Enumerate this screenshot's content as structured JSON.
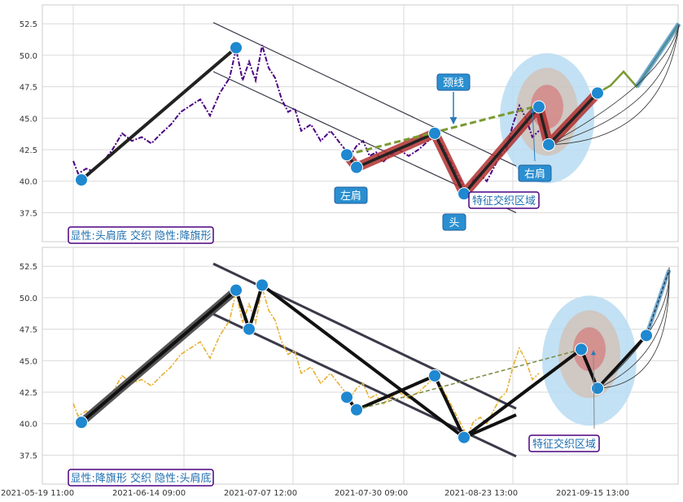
{
  "chart_data": [
    {
      "type": "line",
      "ylim": [
        35.2,
        54.0
      ],
      "yticks": [
        "37.5",
        "40.0",
        "42.5",
        "45.0",
        "47.5",
        "50.0",
        "52.5"
      ],
      "grid": true,
      "xlabels": [
        "2021-05-19 11:00",
        "2021-06-14 09:00",
        "2021-07-07 12:00",
        "2021-07-30 09:00",
        "2021-08-23 13:00",
        "2021-09-15 13:00"
      ],
      "price_color": "#4b0082",
      "price": [
        [
          0,
          41.6
        ],
        [
          3,
          40.6
        ],
        [
          8,
          41.0
        ],
        [
          12,
          40.8
        ],
        [
          18,
          41.5
        ],
        [
          24,
          42.5
        ],
        [
          30,
          43.8
        ],
        [
          36,
          43.2
        ],
        [
          42,
          43.5
        ],
        [
          48,
          43.0
        ],
        [
          54,
          43.8
        ],
        [
          60,
          44.5
        ],
        [
          66,
          45.5
        ],
        [
          72,
          46.0
        ],
        [
          78,
          46.5
        ],
        [
          84,
          45.2
        ],
        [
          90,
          47.0
        ],
        [
          96,
          48.2
        ],
        [
          100,
          50.5
        ],
        [
          104,
          48.0
        ],
        [
          108,
          49.5
        ],
        [
          112,
          48.0
        ],
        [
          116,
          50.8
        ],
        [
          120,
          49.0
        ],
        [
          124,
          48.2
        ],
        [
          128,
          46.5
        ],
        [
          132,
          45.5
        ],
        [
          136,
          45.8
        ],
        [
          140,
          44.0
        ],
        [
          146,
          44.5
        ],
        [
          152,
          43.2
        ],
        [
          158,
          44.0
        ],
        [
          164,
          43.0
        ],
        [
          170,
          42.0
        ],
        [
          174,
          42.8
        ],
        [
          178,
          43.2
        ],
        [
          182,
          42.0
        ],
        [
          186,
          42.3
        ],
        [
          190,
          41.5
        ],
        [
          194,
          42.0
        ],
        [
          200,
          42.5
        ],
        [
          206,
          42.0
        ],
        [
          212,
          42.5
        ],
        [
          218,
          43.2
        ],
        [
          222,
          43.8
        ],
        [
          226,
          43.0
        ],
        [
          230,
          42.0
        ],
        [
          234,
          41.0
        ],
        [
          238,
          40.0
        ],
        [
          242,
          39.0
        ],
        [
          246,
          40.2
        ],
        [
          250,
          40.5
        ],
        [
          254,
          40.0
        ],
        [
          258,
          41.0
        ],
        [
          262,
          42.0
        ],
        [
          266,
          42.5
        ],
        [
          270,
          44.5
        ],
        [
          274,
          46.0
        ],
        [
          278,
          45.0
        ],
        [
          282,
          43.5
        ],
        [
          286,
          44.0
        ]
      ],
      "pattern_x": [
        [
          5,
          40.1
        ],
        [
          100,
          50.6
        ]
      ],
      "head_shoulders": [
        [
          168,
          42.1
        ],
        [
          174,
          41.1
        ],
        [
          222,
          43.8
        ],
        [
          240,
          39.0
        ],
        [
          286,
          45.9
        ],
        [
          292,
          42.9
        ],
        [
          322,
          47.0
        ],
        [
          330,
          47.6
        ],
        [
          338,
          48.7
        ],
        [
          346,
          47.5
        ],
        [
          372,
          52.5
        ]
      ],
      "neckline": [
        [
          168,
          42.1
        ],
        [
          286,
          46.0
        ]
      ],
      "channel_upper": [
        [
          86,
          52.6
        ],
        [
          272,
          41.2
        ]
      ],
      "channel_lower": [
        [
          86,
          48.7
        ],
        [
          272,
          37.5
        ]
      ],
      "markers": [
        [
          5,
          40.1
        ],
        [
          100,
          50.6
        ],
        [
          168,
          42.1
        ],
        [
          174,
          41.1
        ],
        [
          222,
          43.8
        ],
        [
          240,
          39.0
        ],
        [
          286,
          45.9
        ],
        [
          292,
          42.9
        ],
        [
          322,
          47.0
        ]
      ],
      "circle_center": [
        291,
        45.0
      ],
      "annotations": {
        "neckline": "颈线",
        "left_shoulder": "左肩",
        "head": "头",
        "right_shoulder": "右肩",
        "zone": "特征交织区域",
        "legend": "显性:头肩底 交织 隐性:降旗形"
      }
    },
    {
      "type": "line",
      "ylim": [
        35.2,
        54.0
      ],
      "yticks": [
        "37.5",
        "40.0",
        "42.5",
        "45.0",
        "47.5",
        "50.0",
        "52.5"
      ],
      "grid": true,
      "price_color": "#e8b030",
      "price": [
        [
          0,
          41.6
        ],
        [
          3,
          40.6
        ],
        [
          8,
          41.0
        ],
        [
          12,
          40.8
        ],
        [
          18,
          41.5
        ],
        [
          24,
          42.5
        ],
        [
          30,
          43.8
        ],
        [
          36,
          43.2
        ],
        [
          42,
          43.5
        ],
        [
          48,
          43.0
        ],
        [
          54,
          43.8
        ],
        [
          60,
          44.5
        ],
        [
          66,
          45.5
        ],
        [
          72,
          46.0
        ],
        [
          78,
          46.5
        ],
        [
          84,
          45.2
        ],
        [
          90,
          47.0
        ],
        [
          96,
          48.2
        ],
        [
          100,
          50.5
        ],
        [
          104,
          48.0
        ],
        [
          108,
          49.5
        ],
        [
          112,
          48.0
        ],
        [
          116,
          50.8
        ],
        [
          120,
          49.0
        ],
        [
          124,
          48.2
        ],
        [
          128,
          46.5
        ],
        [
          132,
          45.5
        ],
        [
          136,
          45.8
        ],
        [
          140,
          44.0
        ],
        [
          146,
          44.5
        ],
        [
          152,
          43.2
        ],
        [
          158,
          44.0
        ],
        [
          164,
          43.0
        ],
        [
          170,
          42.0
        ],
        [
          174,
          42.8
        ],
        [
          178,
          43.2
        ],
        [
          182,
          42.0
        ],
        [
          186,
          42.3
        ],
        [
          190,
          41.5
        ],
        [
          194,
          42.0
        ],
        [
          200,
          42.5
        ],
        [
          206,
          42.0
        ],
        [
          212,
          42.5
        ],
        [
          218,
          43.2
        ],
        [
          222,
          43.8
        ],
        [
          226,
          43.0
        ],
        [
          230,
          42.0
        ],
        [
          234,
          41.0
        ],
        [
          238,
          40.0
        ],
        [
          242,
          39.0
        ],
        [
          246,
          40.2
        ],
        [
          250,
          40.5
        ],
        [
          254,
          40.0
        ],
        [
          258,
          41.0
        ],
        [
          262,
          42.0
        ],
        [
          266,
          42.5
        ],
        [
          270,
          44.5
        ],
        [
          274,
          46.0
        ],
        [
          278,
          45.0
        ],
        [
          282,
          43.5
        ],
        [
          286,
          44.0
        ]
      ],
      "flag": [
        [
          5,
          40.1
        ],
        [
          100,
          50.6
        ],
        [
          108,
          47.5
        ],
        [
          116,
          51.0
        ],
        [
          240,
          38.9
        ],
        [
          272,
          40.7
        ]
      ],
      "head_shoulders": [
        [
          168,
          42.1
        ],
        [
          174,
          41.1
        ],
        [
          222,
          43.8
        ],
        [
          240,
          38.9
        ],
        [
          312,
          45.9
        ],
        [
          322,
          42.8
        ],
        [
          352,
          47.0
        ]
      ],
      "neckline": [
        [
          174,
          41.1
        ],
        [
          312,
          45.9
        ]
      ],
      "channel_upper": [
        [
          86,
          52.7
        ],
        [
          272,
          41.2
        ]
      ],
      "channel_lower": [
        [
          86,
          48.7
        ],
        [
          272,
          37.4
        ]
      ],
      "markers": [
        [
          5,
          40.1
        ],
        [
          100,
          50.6
        ],
        [
          108,
          47.5
        ],
        [
          116,
          51.0
        ],
        [
          168,
          42.1
        ],
        [
          174,
          41.1
        ],
        [
          222,
          43.8
        ],
        [
          240,
          38.9
        ],
        [
          312,
          45.9
        ],
        [
          322,
          42.8
        ],
        [
          352,
          47.0
        ]
      ],
      "circle_center": [
        317,
        45.0
      ],
      "annotations": {
        "zone": "特征交织区域",
        "legend": "显性:降旗形 交织 隐性:头肩底"
      }
    }
  ]
}
